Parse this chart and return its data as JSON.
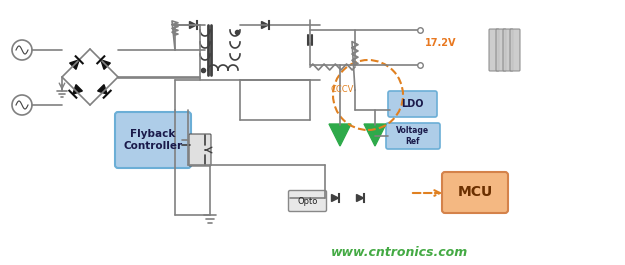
{
  "bg_color": "#ffffff",
  "line_color": "#808080",
  "dark_line": "#404040",
  "green_color": "#2eaa4a",
  "blue_box_color": "#6baed6",
  "blue_box_face": "#aecde8",
  "orange_box_face": "#f4b882",
  "orange_box_edge": "#d4824a",
  "orange_dashed": "#e08020",
  "battery_color": "#c8c8c8",
  "voltage_label_color": "#e87820",
  "website_color": "#44aa44",
  "title_17v": "17.2V",
  "label_flyback": "Flyback\nController",
  "label_ldo": "LDO",
  "label_vref": "Voltage\nRef",
  "label_mcu": "MCU",
  "label_opto": "Opto",
  "label_cccv": "CCCV",
  "website": "www.cntronics.com"
}
